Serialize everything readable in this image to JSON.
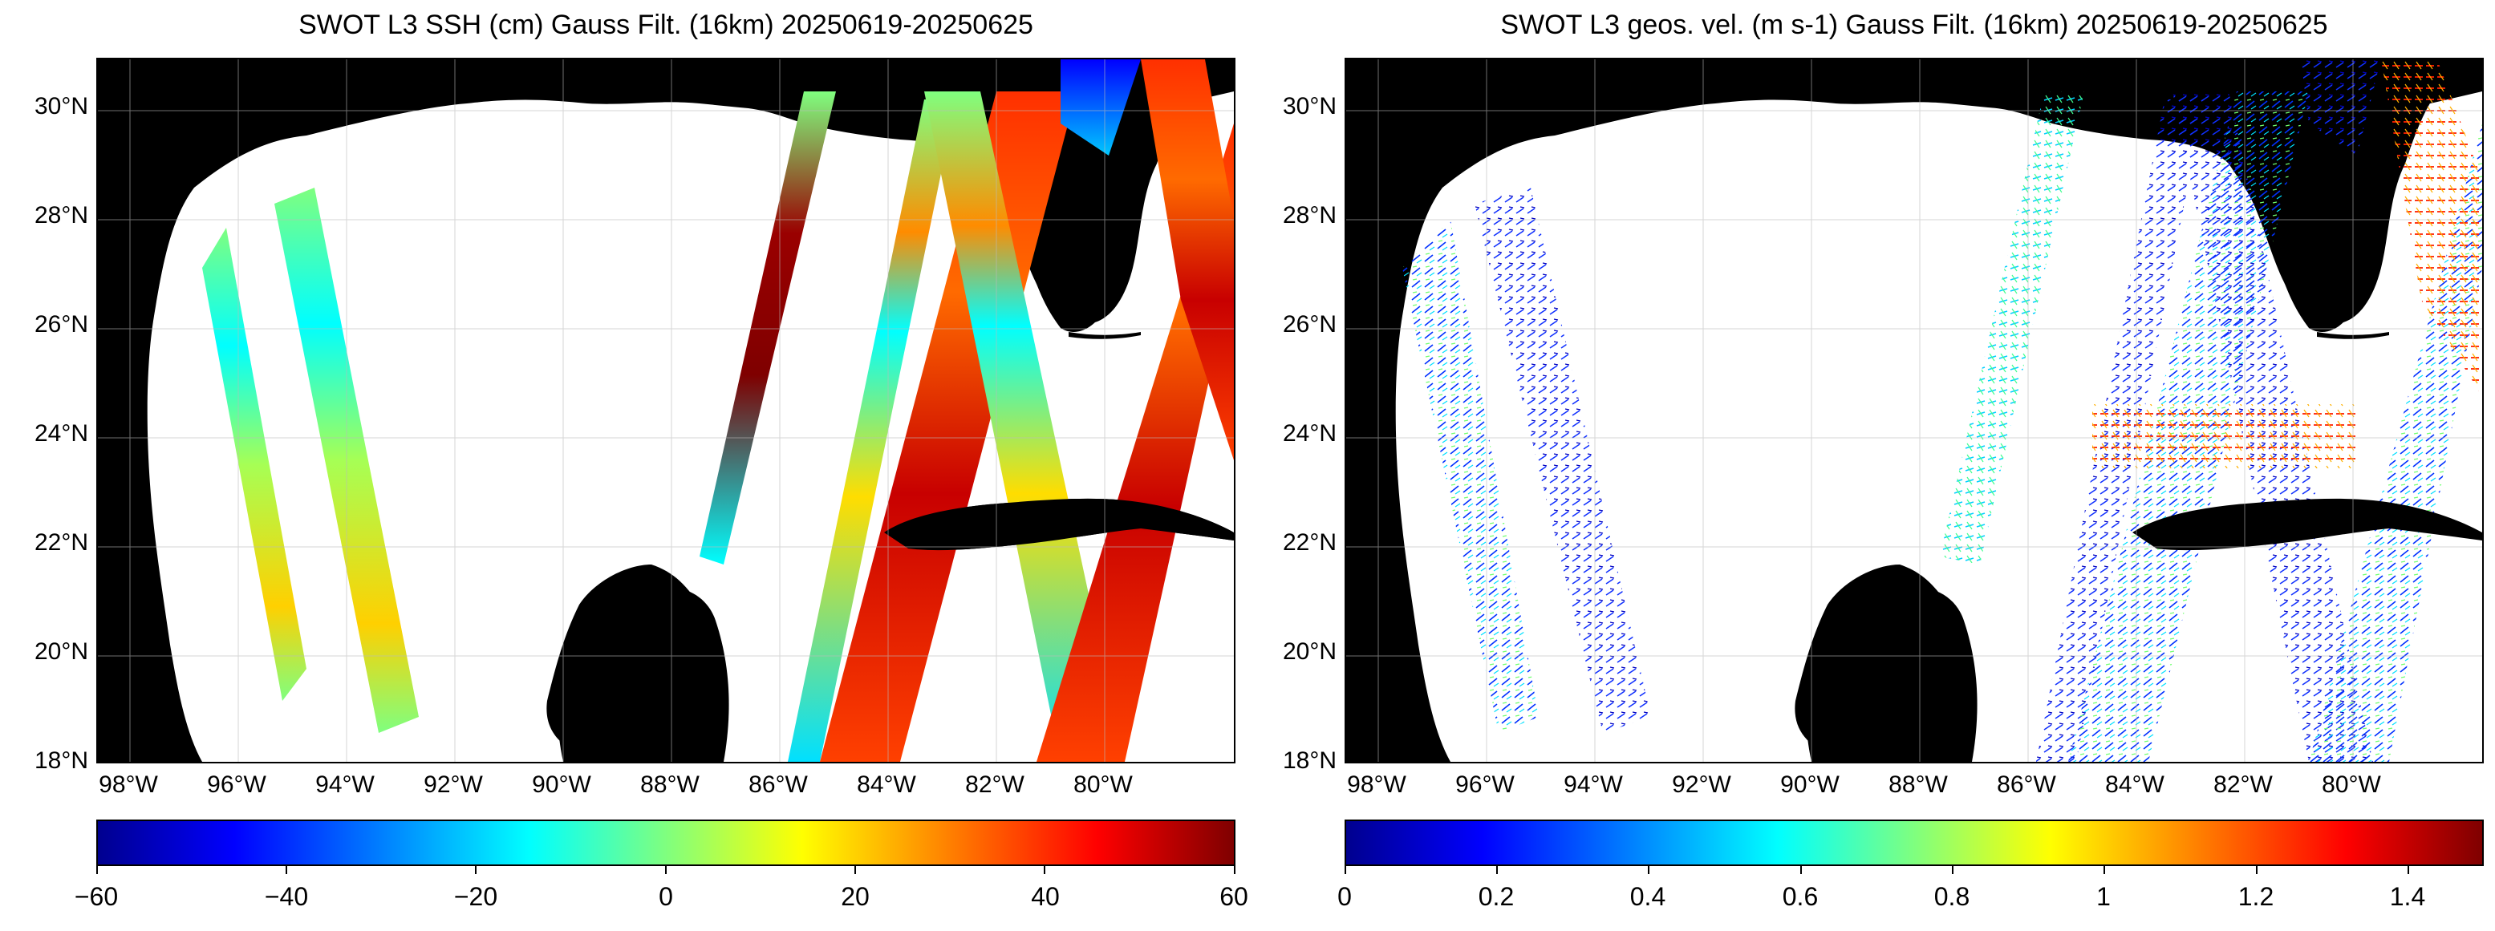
{
  "panels": [
    {
      "title": "SWOT L3 SSH (cm) Gauss Filt. (16km) 20250619-20250625",
      "colorbar_ticks": [
        "−60",
        "−40",
        "−20",
        "0",
        "20",
        "40",
        "60"
      ]
    },
    {
      "title": "SWOT L3 geos. vel. (m s-1) Gauss Filt. (16km) 20250619-20250625",
      "colorbar_ticks": [
        "0",
        "0.2",
        "0.4",
        "0.6",
        "0.8",
        "1",
        "1.2",
        "1.4"
      ]
    }
  ],
  "lat_labels": [
    "30°N",
    "28°N",
    "26°N",
    "24°N",
    "22°N",
    "20°N",
    "18°N"
  ],
  "lon_labels": [
    "98°W",
    "96°W",
    "94°W",
    "92°W",
    "90°W",
    "88°W",
    "86°W",
    "84°W",
    "82°W",
    "80°W"
  ],
  "colormap": [
    "#00008f",
    "#0000ff",
    "#00ffff",
    "#7fff7f",
    "#ffff00",
    "#ff0000",
    "#7f0000"
  ],
  "colors": {
    "land": "#000000",
    "ocean_no_data": "#ffffff",
    "grid": "#d0d0d0"
  }
}
